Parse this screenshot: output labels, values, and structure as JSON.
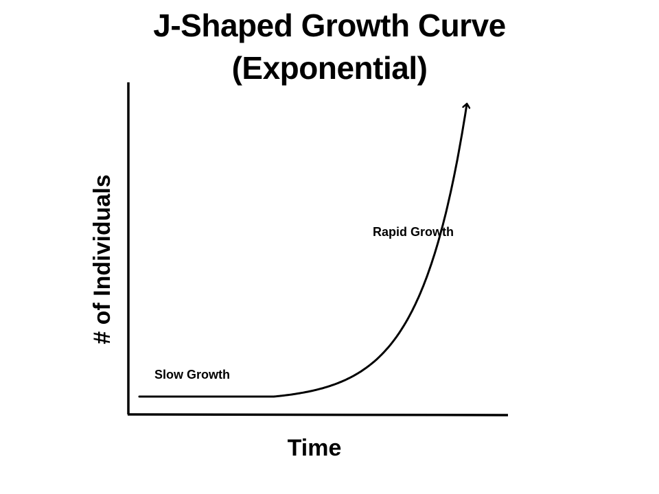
{
  "chart_data": {
    "type": "line",
    "title": "J-Shaped Growth Curve",
    "subtitle": "(Exponential)",
    "xlabel": "Time",
    "ylabel": "# of Individuals",
    "series": [
      {
        "values_shape": "exponential",
        "x": [
          0,
          0.3,
          0.4,
          0.5,
          0.6,
          0.65,
          0.7,
          0.73
        ],
        "y": [
          0.02,
          0.02,
          0.07,
          0.2,
          0.42,
          0.6,
          0.85,
          1.0
        ]
      }
    ],
    "annotations": [
      {
        "text": "Slow Growth",
        "anchor": "early-flat"
      },
      {
        "text": "Rapid Growth",
        "anchor": "steep-rise"
      }
    ],
    "grid": false,
    "legend": "none",
    "arrow_at_end": true,
    "colors": {
      "line": "#000000",
      "axes": "#000000",
      "background": "#ffffff"
    }
  }
}
